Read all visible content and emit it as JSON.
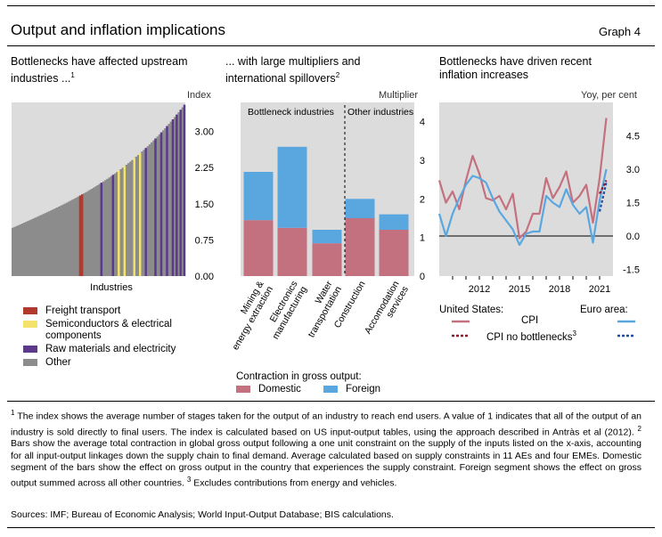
{
  "header": {
    "title": "Output and inflation implications",
    "graph_label": "Graph 4"
  },
  "panel1": {
    "title_line1": "Bottlenecks have affected upstream",
    "title_line2": "industries ...",
    "title_sup": "1",
    "unit": "Index",
    "xlabel": "Industries",
    "legend": [
      {
        "label_line1": "Freight transport",
        "label_line2": "",
        "color": "#b03a2e"
      },
      {
        "label_line1": "Semiconductors & electrical",
        "label_line2": "components",
        "color": "#f3e36a"
      },
      {
        "label_line1": "Raw materials and electricity",
        "label_line2": "",
        "color": "#5b3a8c"
      },
      {
        "label_line1": "Other",
        "label_line2": "",
        "color": "#8c8c8c"
      }
    ]
  },
  "panel2": {
    "title_line1": "... with large multipliers and",
    "title_line2": "international spillovers",
    "title_sup": "2",
    "unit": "Multiplier",
    "group_left": "Bottleneck industries",
    "group_right": "Other industries",
    "legend_title": "Contraction in gross output:",
    "legend": [
      {
        "label": "Domestic",
        "color": "#c4717f"
      },
      {
        "label": "Foreign",
        "color": "#5aa7e0"
      }
    ]
  },
  "panel3": {
    "title_line1": "Bottlenecks have driven recent",
    "title_line2": "inflation increases",
    "unit": "Yoy, per cent",
    "legend_us": "United States:",
    "legend_ea": "Euro area:",
    "legend_cpi": "CPI",
    "legend_cpi_nb": "CPI no bottlenecks",
    "legend_cpi_nb_sup": "3",
    "us_color": "#c4717f",
    "us_nb_color": "#8b1a2b",
    "ea_color": "#5aa7e0",
    "ea_nb_color": "#1f4e9c"
  },
  "notes": {
    "n1_sup": "1",
    "n1": " The index shows the average number of stages taken for the output of an industry to reach end users. A value of 1 indicates that all of the output of an industry is sold directly to final users. The index is calculated based on US input-output tables, using the approach described in Antràs et al (2012). ",
    "n2_sup": "2",
    "n2": " Bars show the average total contraction in global gross output following a one unit constraint on the supply of the inputs listed on the x-axis, accounting for all input-output linkages down the supply chain to final demand. Average calculated based on supply constraints in 11 AEs and four EMEs. Domestic segment of the bars show the effect on gross output in the country that experiences the supply constraint. Foreign segment shows the effect on gross output summed across all other countries. ",
    "n3_sup": "3",
    "n3": " Excludes contributions from energy and vehicles.",
    "sources": "Sources: IMF; Bureau of Economic Analysis; World Input-Output Database; BIS calculations."
  },
  "chart_data": [
    {
      "type": "bar",
      "title": "Bottlenecks have affected upstream industries ...",
      "xlabel": "Industries",
      "ylabel": "Index",
      "ylim": [
        0,
        3.6
      ],
      "yticks": [
        "0.00",
        "0.75",
        "1.50",
        "2.25",
        "3.00"
      ],
      "n_industries": 90,
      "values_sorted_min_max": [
        1.0,
        3.55
      ],
      "highlighted_positions": {
        "Freight transport": [
          35,
          36
        ],
        "Semiconductors & electrical components": [
          55,
          58,
          63,
          66
        ],
        "Raw materials and electricity": [
          46,
          52,
          69,
          74,
          77,
          80,
          83,
          85,
          87,
          89
        ]
      }
    },
    {
      "type": "bar",
      "title": "... with large multipliers and international spillovers",
      "ylabel": "Multiplier",
      "ylim": [
        0,
        4.5
      ],
      "yticks": [
        "0",
        "1",
        "2",
        "3",
        "4"
      ],
      "categories": [
        "Mining & energy extraction",
        "Electronics manufacturing",
        "Water transportation",
        "Construction",
        "Accomodation services"
      ],
      "groups": [
        {
          "name": "Bottleneck industries",
          "categories": [
            0,
            1,
            2
          ]
        },
        {
          "name": "Other industries",
          "categories": [
            3,
            4
          ]
        }
      ],
      "series": [
        {
          "name": "Domestic",
          "values": [
            1.45,
            1.25,
            0.85,
            1.5,
            1.2
          ]
        },
        {
          "name": "Foreign",
          "values": [
            1.25,
            2.1,
            0.35,
            0.5,
            0.4
          ]
        }
      ]
    },
    {
      "type": "line",
      "title": "Bottlenecks have driven recent inflation increases",
      "ylabel": "Yoy, per cent",
      "ylim": [
        -1.8,
        6.0
      ],
      "yticks": [
        "-1.5",
        "0.0",
        "1.5",
        "3.0",
        "4.5"
      ],
      "xticks": [
        "2012",
        "2015",
        "2018",
        "2021"
      ],
      "x_years": [
        2009.0,
        2009.5,
        2010.0,
        2010.5,
        2011.0,
        2011.5,
        2012.0,
        2012.5,
        2013.0,
        2013.5,
        2014.0,
        2014.5,
        2015.0,
        2015.5,
        2016.0,
        2016.5,
        2017.0,
        2017.5,
        2018.0,
        2018.5,
        2019.0,
        2019.5,
        2020.0,
        2020.5,
        2021.0,
        2021.5
      ],
      "series": [
        {
          "name": "United States: CPI",
          "values": [
            2.5,
            1.5,
            2.0,
            1.2,
            2.5,
            3.6,
            2.8,
            1.7,
            1.6,
            1.8,
            1.2,
            1.9,
            -0.1,
            0.2,
            1.0,
            1.0,
            2.6,
            1.7,
            2.2,
            2.9,
            1.5,
            1.8,
            2.3,
            0.6,
            2.6,
            5.3
          ]
        },
        {
          "name": "United States: CPI no bottlenecks",
          "values": [
            null,
            null,
            null,
            null,
            null,
            null,
            null,
            null,
            null,
            null,
            null,
            null,
            null,
            null,
            null,
            null,
            null,
            null,
            null,
            null,
            null,
            null,
            null,
            null,
            1.9,
            2.5
          ]
        },
        {
          "name": "Euro area: CPI",
          "values": [
            1.0,
            0.0,
            1.0,
            1.7,
            2.3,
            2.7,
            2.6,
            2.4,
            1.7,
            1.1,
            0.7,
            0.3,
            -0.4,
            0.1,
            0.2,
            0.2,
            1.8,
            1.5,
            1.3,
            2.1,
            1.4,
            1.0,
            1.3,
            -0.3,
            1.6,
            3.0
          ]
        },
        {
          "name": "Euro area: CPI no bottlenecks",
          "values": [
            null,
            null,
            null,
            null,
            null,
            null,
            null,
            null,
            null,
            null,
            null,
            null,
            null,
            null,
            null,
            null,
            null,
            null,
            null,
            null,
            null,
            null,
            null,
            null,
            1.1,
            2.4
          ]
        }
      ]
    }
  ]
}
